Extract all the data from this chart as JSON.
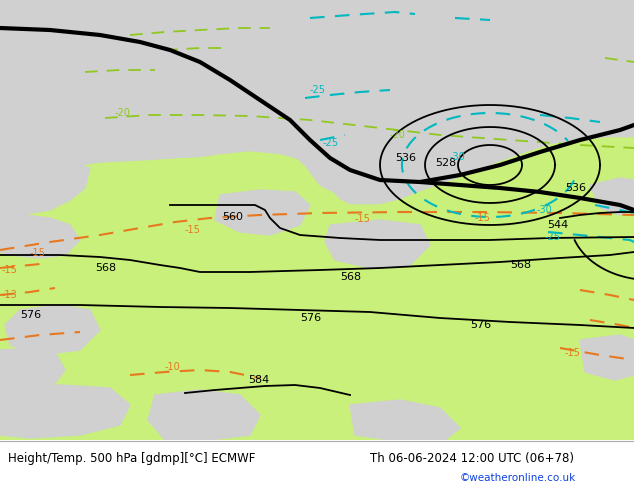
{
  "title_left": "Height/Temp. 500 hPa [gdmp][°C] ECMWF",
  "title_right": "Th 06-06-2024 12:00 UTC (06+78)",
  "credit": "©weatheronline.co.uk",
  "bg_color": "#d0d0d0",
  "land_green": "#c8f07a",
  "gray_land": "#b8b8b8",
  "white": "#ffffff",
  "black": "#000000",
  "orange": "#e87820",
  "cyan": "#00b8c0",
  "yellow_green": "#90c820",
  "credit_color": "#1040e0",
  "label_fs": 7,
  "title_fs": 8.5
}
